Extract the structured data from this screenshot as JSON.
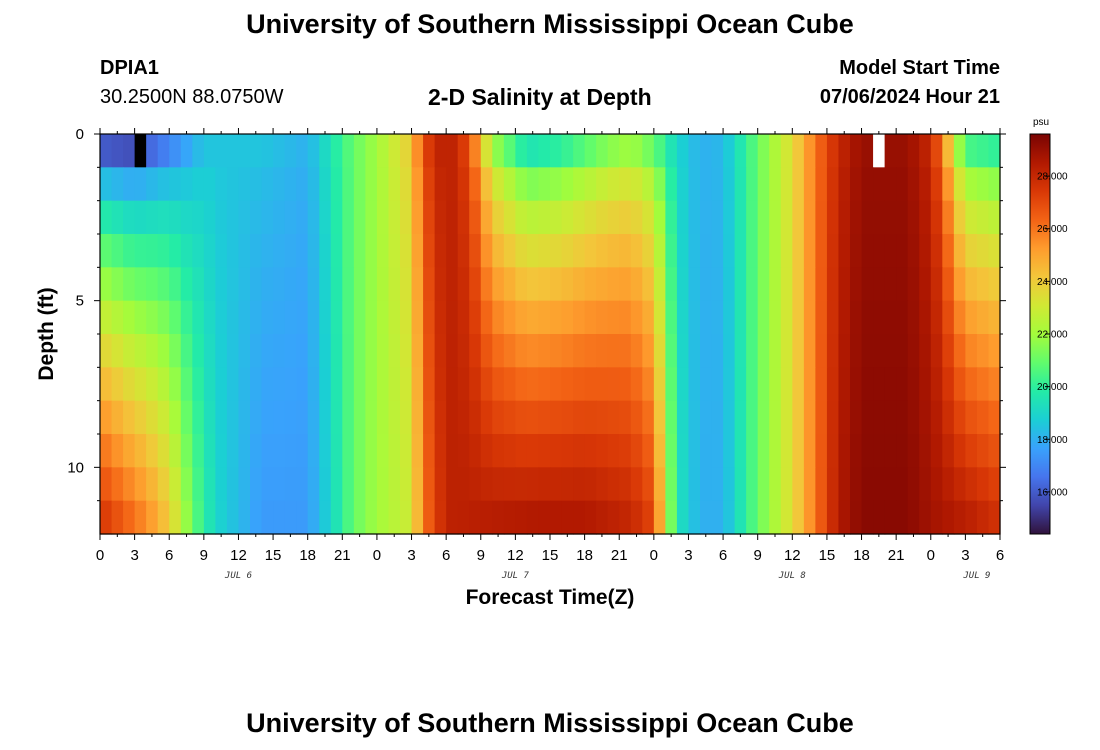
{
  "page": {
    "title_top": "University of Southern Mississippi Ocean Cube",
    "title_bottom": "University of Southern Mississippi Ocean Cube",
    "station_id": "DPIA1",
    "station_coords": "30.2500N  88.0750W",
    "plot_title": "2-D Salinity at Depth",
    "model_start_label": "Model Start Time",
    "model_start_value": "07/06/2024 Hour 21"
  },
  "colors": {
    "scale": [
      "#30123b",
      "#4145ab",
      "#4675ed",
      "#39a2fc",
      "#1bcfd4",
      "#24eca6",
      "#61fc6c",
      "#a4fc3b",
      "#d1e834",
      "#f3c63a",
      "#fe9b2d",
      "#f36315",
      "#d93806",
      "#b11901",
      "#7a0403"
    ],
    "missing": "#ffffff",
    "dark_cell": "#000000"
  },
  "chart_data": {
    "type": "heatmap",
    "title": "2-D Salinity at Depth",
    "xlabel": "Forecast Time(Z)",
    "ylabel": "Depth (ft)",
    "x_tick_labels": [
      "0",
      "3",
      "6",
      "9",
      "12",
      "15",
      "18",
      "21",
      "0",
      "3",
      "6",
      "9",
      "12",
      "15",
      "18",
      "21",
      "0",
      "3",
      "6",
      "9",
      "12",
      "15",
      "18",
      "21",
      "0",
      "3",
      "6"
    ],
    "x_range_hours": [
      0,
      78
    ],
    "x_date_labels": [
      {
        "hour": 12,
        "label": "JUL 6"
      },
      {
        "hour": 36,
        "label": "JUL 7"
      },
      {
        "hour": 60,
        "label": "JUL 8"
      },
      {
        "hour": 76,
        "label": "JUL 9"
      }
    ],
    "y_tick_labels": [
      "0",
      "5",
      "10"
    ],
    "y_range_ft": [
      0,
      12
    ],
    "depth_levels": 12,
    "time_steps": 78,
    "colorbar": {
      "unit": "psu",
      "range": [
        14.4,
        29.6
      ],
      "tick_values": [
        16,
        18,
        20,
        22,
        24,
        26,
        28
      ],
      "tick_labels": [
        "16.000",
        "18.000",
        "20.000",
        "22.000",
        "24.000",
        "26.000",
        "28.000"
      ]
    },
    "salinity_keypoints": {
      "surface": [
        [
          0,
          16
        ],
        [
          3,
          15.7
        ],
        [
          6,
          17
        ],
        [
          9,
          18.5
        ],
        [
          14,
          18.5
        ],
        [
          18,
          18
        ],
        [
          20,
          19.5
        ],
        [
          22,
          21
        ],
        [
          24,
          22
        ],
        [
          27,
          24
        ],
        [
          28,
          27
        ],
        [
          30,
          28.5
        ],
        [
          32,
          27
        ],
        [
          34,
          22
        ],
        [
          37,
          19.5
        ],
        [
          40,
          20
        ],
        [
          44,
          21.5
        ],
        [
          46,
          22
        ],
        [
          48,
          21
        ],
        [
          50,
          19
        ],
        [
          52,
          18
        ],
        [
          54,
          18.2
        ],
        [
          57,
          21
        ],
        [
          60,
          23.5
        ],
        [
          62,
          26
        ],
        [
          64,
          28
        ],
        [
          66,
          29
        ],
        [
          70,
          29
        ],
        [
          72,
          28
        ],
        [
          73,
          26
        ],
        [
          74,
          23
        ],
        [
          75,
          20.5
        ],
        [
          78,
          20
        ]
      ],
      "bottom": [
        [
          0,
          27.5
        ],
        [
          2,
          26.5
        ],
        [
          4,
          25.5
        ],
        [
          6,
          24
        ],
        [
          8,
          21
        ],
        [
          10,
          19
        ],
        [
          14,
          17.5
        ],
        [
          18,
          17.5
        ],
        [
          20,
          19
        ],
        [
          22,
          21
        ],
        [
          24,
          22
        ],
        [
          27,
          23
        ],
        [
          28,
          26
        ],
        [
          30,
          28.2
        ],
        [
          38,
          28.5
        ],
        [
          42,
          28.5
        ],
        [
          46,
          28
        ],
        [
          48,
          27
        ],
        [
          49,
          23
        ],
        [
          50,
          19.5
        ],
        [
          52,
          18
        ],
        [
          54,
          18
        ],
        [
          57,
          21
        ],
        [
          60,
          23.5
        ],
        [
          62,
          26
        ],
        [
          64,
          28.5
        ],
        [
          66,
          29.3
        ],
        [
          70,
          29.3
        ],
        [
          72,
          28.8
        ],
        [
          75,
          28.3
        ],
        [
          78,
          27.6
        ]
      ]
    },
    "missing_cell": {
      "hour": 67,
      "depth_level": 0
    },
    "dark_cell": {
      "hour": 3,
      "depth_level": 0
    }
  }
}
